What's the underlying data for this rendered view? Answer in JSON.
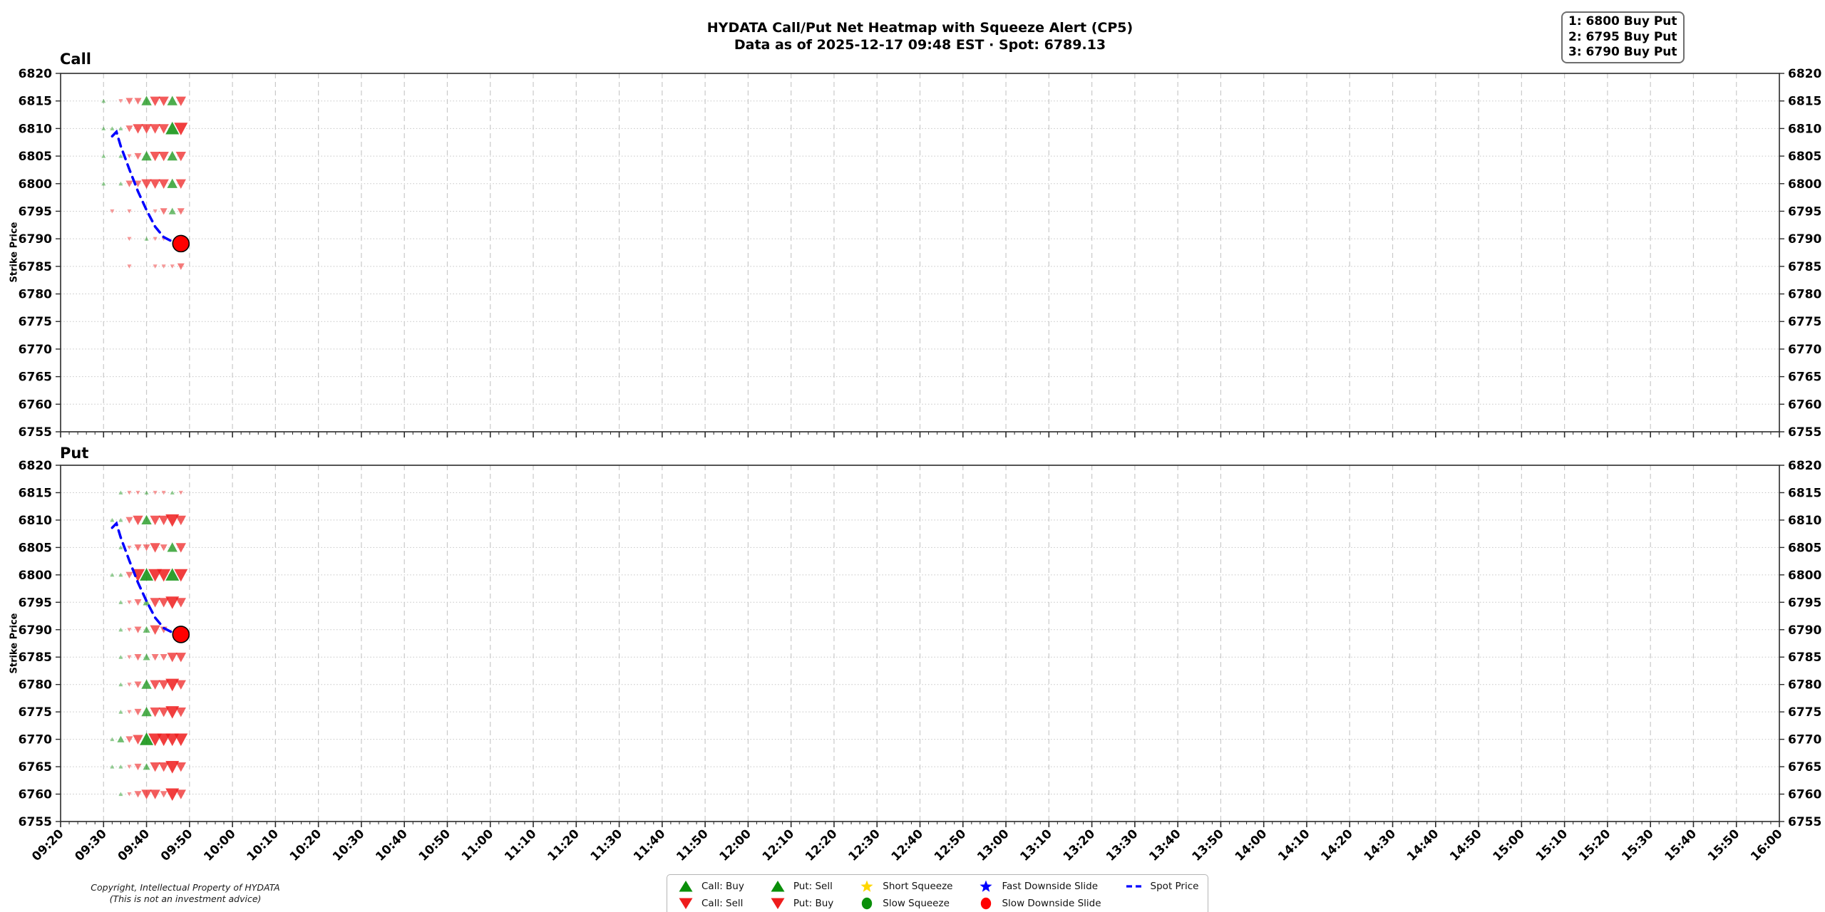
{
  "header": {
    "title": "HYDATA Call/Put Net Heatmap with Squeeze Alert (CP5)",
    "subtitle": "Data as of 2025-12-17 09:48 EST · Spot: 6789.13"
  },
  "alerts": {
    "lines": [
      "1: 6800 Buy Put",
      "2: 6795 Buy Put",
      "3: 6790 Buy Put"
    ]
  },
  "footer": {
    "line1": "Copyright, Intellectual Property of HYDATA",
    "line2": "(This is not an investment advice)"
  },
  "colors": {
    "green": "#0a8f0a",
    "red": "#ee1c1c",
    "blue": "#0000ff",
    "slide_red": "#ff0000",
    "gold": "#ffd700",
    "grid_v": "#c9c9c9",
    "grid_h": "#c5c5c5",
    "spine": "#2b2b2b",
    "text": "#000000"
  },
  "legend": {
    "columns": [
      [
        {
          "icon": "triangle-up",
          "color": "#0a8f0a",
          "label": "Call: Buy"
        },
        {
          "icon": "triangle-down",
          "color": "#ee1c1c",
          "label": "Call: Sell"
        }
      ],
      [
        {
          "icon": "triangle-up",
          "color": "#0a8f0a",
          "label": "Put: Sell"
        },
        {
          "icon": "triangle-down",
          "color": "#ee1c1c",
          "label": "Put: Buy"
        }
      ],
      [
        {
          "icon": "star",
          "color": "#ffd700",
          "label": "Short Squeeze"
        },
        {
          "icon": "circle",
          "color": "#0a8f0a",
          "label": "Slow Squeeze"
        }
      ],
      [
        {
          "icon": "star",
          "color": "#0000ff",
          "label": "Fast Downside Slide"
        },
        {
          "icon": "circle",
          "color": "#ff0000",
          "label": "Slow Downside Slide"
        }
      ],
      [
        {
          "icon": "dashed-line",
          "color": "#0000ff",
          "label": "Spot Price"
        }
      ]
    ]
  },
  "axis": {
    "ylabel": "Strike Price",
    "xlim": [
      "09:20",
      "16:00"
    ],
    "ylim": [
      6755,
      6820
    ],
    "times": [
      "09:20",
      "09:30",
      "09:40",
      "09:50",
      "10:00",
      "10:10",
      "10:20",
      "10:30",
      "10:40",
      "10:50",
      "11:00",
      "11:10",
      "11:20",
      "11:30",
      "11:40",
      "11:50",
      "12:00",
      "12:10",
      "12:20",
      "12:30",
      "12:40",
      "12:50",
      "13:00",
      "13:10",
      "13:20",
      "13:30",
      "13:40",
      "13:50",
      "14:00",
      "14:10",
      "14:20",
      "14:30",
      "14:40",
      "14:50",
      "15:00",
      "15:10",
      "15:20",
      "15:30",
      "15:40",
      "15:50",
      "16:00"
    ],
    "strikes": [
      6755,
      6760,
      6765,
      6770,
      6775,
      6780,
      6785,
      6790,
      6795,
      6800,
      6805,
      6810,
      6815,
      6820
    ]
  },
  "chart_data": [
    {
      "type": "scatter",
      "panel": "call",
      "title": "Call",
      "marker_legend": {
        "up": "Call: Buy",
        "down": "Call: Sell"
      },
      "rows": [
        {
          "strike": 6815,
          "markers": [
            [
              "09:30",
              "up",
              1
            ],
            [
              "09:34",
              "down",
              1
            ],
            [
              "09:36",
              "down",
              2
            ],
            [
              "09:38",
              "down",
              2
            ],
            [
              "09:40",
              "up",
              3
            ],
            [
              "09:42",
              "down",
              3
            ],
            [
              "09:44",
              "down",
              3
            ],
            [
              "09:46",
              "up",
              3
            ],
            [
              "09:48",
              "down",
              3
            ]
          ]
        },
        {
          "strike": 6810,
          "markers": [
            [
              "09:30",
              "up",
              1
            ],
            [
              "09:32",
              "up",
              1
            ],
            [
              "09:34",
              "up",
              1
            ],
            [
              "09:36",
              "down",
              2
            ],
            [
              "09:38",
              "down",
              3
            ],
            [
              "09:40",
              "down",
              3
            ],
            [
              "09:42",
              "down",
              3
            ],
            [
              "09:44",
              "down",
              3
            ],
            [
              "09:46",
              "up",
              4
            ],
            [
              "09:48",
              "down",
              4
            ]
          ]
        },
        {
          "strike": 6805,
          "markers": [
            [
              "09:30",
              "up",
              1
            ],
            [
              "09:34",
              "up",
              1
            ],
            [
              "09:36",
              "down",
              1
            ],
            [
              "09:38",
              "down",
              2
            ],
            [
              "09:40",
              "up",
              3
            ],
            [
              "09:42",
              "down",
              3
            ],
            [
              "09:44",
              "down",
              3
            ],
            [
              "09:46",
              "up",
              3
            ],
            [
              "09:48",
              "down",
              3
            ]
          ]
        },
        {
          "strike": 6800,
          "markers": [
            [
              "09:30",
              "up",
              1
            ],
            [
              "09:34",
              "up",
              1
            ],
            [
              "09:36",
              "down",
              2
            ],
            [
              "09:38",
              "down",
              2
            ],
            [
              "09:40",
              "down",
              3
            ],
            [
              "09:42",
              "down",
              3
            ],
            [
              "09:44",
              "down",
              3
            ],
            [
              "09:46",
              "up",
              3
            ],
            [
              "09:48",
              "down",
              3
            ]
          ]
        },
        {
          "strike": 6795,
          "markers": [
            [
              "09:32",
              "down",
              1
            ],
            [
              "09:36",
              "down",
              1
            ],
            [
              "09:42",
              "down",
              1
            ],
            [
              "09:44",
              "down",
              2
            ],
            [
              "09:46",
              "up",
              2
            ],
            [
              "09:48",
              "down",
              2
            ]
          ]
        },
        {
          "strike": 6790,
          "markers": [
            [
              "09:36",
              "down",
              1
            ],
            [
              "09:40",
              "up",
              1
            ],
            [
              "09:42",
              "down",
              1
            ],
            [
              "09:44",
              "down",
              1
            ]
          ]
        },
        {
          "strike": 6785,
          "markers": [
            [
              "09:36",
              "down",
              1
            ],
            [
              "09:42",
              "down",
              1
            ],
            [
              "09:44",
              "down",
              1
            ],
            [
              "09:46",
              "down",
              1
            ],
            [
              "09:48",
              "down",
              2
            ]
          ]
        }
      ],
      "spot_line": [
        [
          "09:32",
          6808.6
        ],
        [
          "09:33",
          6809.4
        ],
        [
          "09:34",
          6806.8
        ],
        [
          "09:36",
          6802.6
        ],
        [
          "09:38",
          6798.6
        ],
        [
          "09:40",
          6795.2
        ],
        [
          "09:42",
          6792.2
        ],
        [
          "09:44",
          6790.3
        ],
        [
          "09:46",
          6789.5
        ],
        [
          "09:48",
          6789.13
        ]
      ],
      "slide_marker": {
        "time": "09:48",
        "price": 6789.13,
        "label": "Slow Downside Slide"
      }
    },
    {
      "type": "scatter",
      "panel": "put",
      "title": "Put",
      "marker_legend": {
        "up": "Put: Sell",
        "down": "Put: Buy"
      },
      "rows": [
        {
          "strike": 6815,
          "markers": [
            [
              "09:34",
              "up",
              1
            ],
            [
              "09:36",
              "down",
              1
            ],
            [
              "09:38",
              "down",
              1
            ],
            [
              "09:40",
              "up",
              1
            ],
            [
              "09:42",
              "down",
              1
            ],
            [
              "09:44",
              "down",
              1
            ],
            [
              "09:46",
              "up",
              1
            ],
            [
              "09:48",
              "down",
              1
            ]
          ]
        },
        {
          "strike": 6810,
          "markers": [
            [
              "09:32",
              "up",
              1
            ],
            [
              "09:34",
              "up",
              1
            ],
            [
              "09:36",
              "down",
              2
            ],
            [
              "09:38",
              "down",
              3
            ],
            [
              "09:40",
              "up",
              3
            ],
            [
              "09:42",
              "down",
              3
            ],
            [
              "09:44",
              "down",
              3
            ],
            [
              "09:46",
              "down",
              4
            ],
            [
              "09:48",
              "down",
              3
            ]
          ]
        },
        {
          "strike": 6805,
          "markers": [
            [
              "09:34",
              "up",
              1
            ],
            [
              "09:36",
              "down",
              1
            ],
            [
              "09:38",
              "down",
              2
            ],
            [
              "09:40",
              "down",
              2
            ],
            [
              "09:42",
              "down",
              3
            ],
            [
              "09:44",
              "down",
              2
            ],
            [
              "09:46",
              "up",
              3
            ],
            [
              "09:48",
              "down",
              3
            ]
          ]
        },
        {
          "strike": 6800,
          "markers": [
            [
              "09:32",
              "up",
              1
            ],
            [
              "09:34",
              "up",
              1
            ],
            [
              "09:36",
              "down",
              2
            ],
            [
              "09:38",
              "down",
              4
            ],
            [
              "09:40",
              "up",
              4
            ],
            [
              "09:42",
              "down",
              4
            ],
            [
              "09:44",
              "down",
              4
            ],
            [
              "09:46",
              "up",
              4
            ],
            [
              "09:48",
              "down",
              4
            ]
          ]
        },
        {
          "strike": 6795,
          "markers": [
            [
              "09:34",
              "up",
              1
            ],
            [
              "09:36",
              "down",
              1
            ],
            [
              "09:38",
              "down",
              2
            ],
            [
              "09:40",
              "up",
              2
            ],
            [
              "09:42",
              "down",
              3
            ],
            [
              "09:44",
              "down",
              3
            ],
            [
              "09:46",
              "down",
              4
            ],
            [
              "09:48",
              "down",
              3
            ]
          ]
        },
        {
          "strike": 6790,
          "markers": [
            [
              "09:34",
              "up",
              1
            ],
            [
              "09:36",
              "down",
              1
            ],
            [
              "09:38",
              "down",
              2
            ],
            [
              "09:40",
              "up",
              2
            ],
            [
              "09:42",
              "down",
              3
            ],
            [
              "09:44",
              "down",
              2
            ]
          ]
        },
        {
          "strike": 6785,
          "markers": [
            [
              "09:34",
              "up",
              1
            ],
            [
              "09:36",
              "down",
              1
            ],
            [
              "09:38",
              "down",
              2
            ],
            [
              "09:40",
              "up",
              2
            ],
            [
              "09:42",
              "down",
              2
            ],
            [
              "09:44",
              "down",
              2
            ],
            [
              "09:46",
              "down",
              3
            ],
            [
              "09:48",
              "down",
              3
            ]
          ]
        },
        {
          "strike": 6780,
          "markers": [
            [
              "09:34",
              "up",
              1
            ],
            [
              "09:36",
              "down",
              1
            ],
            [
              "09:38",
              "down",
              2
            ],
            [
              "09:40",
              "up",
              3
            ],
            [
              "09:42",
              "down",
              3
            ],
            [
              "09:44",
              "down",
              3
            ],
            [
              "09:46",
              "down",
              4
            ],
            [
              "09:48",
              "down",
              3
            ]
          ]
        },
        {
          "strike": 6775,
          "markers": [
            [
              "09:34",
              "up",
              1
            ],
            [
              "09:36",
              "down",
              1
            ],
            [
              "09:38",
              "down",
              2
            ],
            [
              "09:40",
              "up",
              3
            ],
            [
              "09:42",
              "down",
              3
            ],
            [
              "09:44",
              "down",
              3
            ],
            [
              "09:46",
              "down",
              4
            ],
            [
              "09:48",
              "down",
              3
            ]
          ]
        },
        {
          "strike": 6770,
          "markers": [
            [
              "09:32",
              "up",
              1
            ],
            [
              "09:34",
              "up",
              2
            ],
            [
              "09:36",
              "down",
              2
            ],
            [
              "09:38",
              "down",
              3
            ],
            [
              "09:40",
              "up",
              4
            ],
            [
              "09:42",
              "down",
              4
            ],
            [
              "09:44",
              "down",
              4
            ],
            [
              "09:46",
              "down",
              4
            ],
            [
              "09:48",
              "down",
              4
            ]
          ]
        },
        {
          "strike": 6765,
          "markers": [
            [
              "09:32",
              "up",
              1
            ],
            [
              "09:34",
              "up",
              1
            ],
            [
              "09:36",
              "down",
              1
            ],
            [
              "09:38",
              "down",
              2
            ],
            [
              "09:40",
              "up",
              2
            ],
            [
              "09:42",
              "down",
              3
            ],
            [
              "09:44",
              "down",
              3
            ],
            [
              "09:46",
              "down",
              4
            ],
            [
              "09:48",
              "down",
              3
            ]
          ]
        },
        {
          "strike": 6760,
          "markers": [
            [
              "09:34",
              "up",
              1
            ],
            [
              "09:36",
              "down",
              1
            ],
            [
              "09:38",
              "down",
              2
            ],
            [
              "09:40",
              "down",
              3
            ],
            [
              "09:42",
              "down",
              3
            ],
            [
              "09:44",
              "down",
              2
            ],
            [
              "09:46",
              "down",
              4
            ],
            [
              "09:48",
              "down",
              3
            ]
          ]
        }
      ],
      "spot_line": [
        [
          "09:32",
          6808.6
        ],
        [
          "09:33",
          6809.4
        ],
        [
          "09:34",
          6806.8
        ],
        [
          "09:36",
          6802.6
        ],
        [
          "09:38",
          6798.6
        ],
        [
          "09:40",
          6795.2
        ],
        [
          "09:42",
          6792.2
        ],
        [
          "09:44",
          6790.3
        ],
        [
          "09:46",
          6789.5
        ],
        [
          "09:48",
          6789.13
        ]
      ],
      "slide_marker": {
        "time": "09:48",
        "price": 6789.13,
        "label": "Slow Downside Slide"
      }
    }
  ]
}
